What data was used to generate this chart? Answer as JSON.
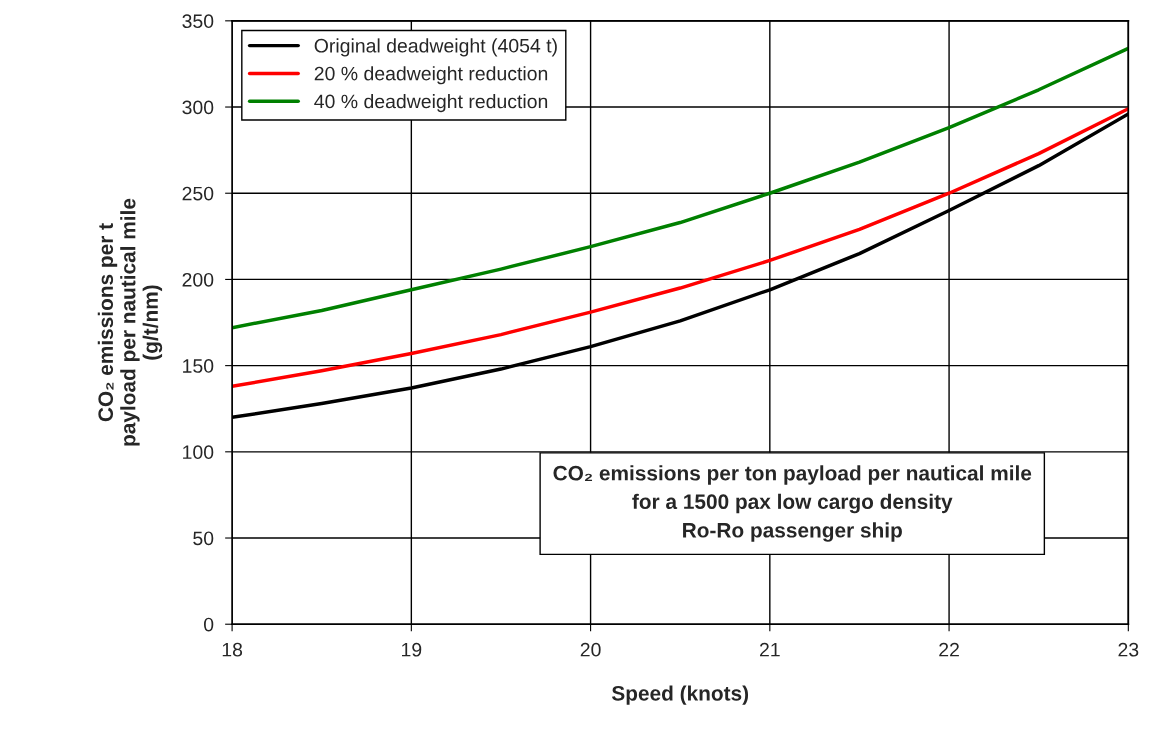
{
  "chart_data": {
    "type": "line",
    "xlabel": "Speed (knots)",
    "ylabel": "CO₂ emissions per t\npayload per nautical mile\n(g/t/nm)",
    "x": [
      18,
      18.5,
      19,
      19.5,
      20,
      20.5,
      21,
      21.5,
      22,
      22.5,
      23
    ],
    "series": [
      {
        "name": "Original deadweight (4054 t)",
        "color": "#000000",
        "values": [
          120,
          128,
          137,
          148,
          161,
          176,
          194,
          215,
          240,
          266,
          296
        ]
      },
      {
        "name": "20 % deadweight reduction",
        "color": "#ff0000",
        "values": [
          138,
          147,
          157,
          168,
          181,
          195,
          211,
          229,
          250,
          273,
          299
        ]
      },
      {
        "name": "40 % deadweight reduction",
        "color": "#008000",
        "values": [
          172,
          182,
          194,
          206,
          219,
          233,
          250,
          268,
          288,
          310,
          334
        ]
      }
    ],
    "xlim": [
      18,
      23
    ],
    "xticks": [
      18,
      19,
      20,
      21,
      22,
      23
    ],
    "ylim": [
      0,
      350
    ],
    "yticks": [
      0,
      50,
      100,
      150,
      200,
      250,
      300,
      350
    ],
    "grid": true,
    "legend": "top left",
    "marker": "none",
    "line_style": "solid",
    "annotations": [
      "CO₂ emissions per ton payload per nautical mile\nfor a 1500 pax low cargo density\nRo-Ro passenger ship"
    ]
  }
}
